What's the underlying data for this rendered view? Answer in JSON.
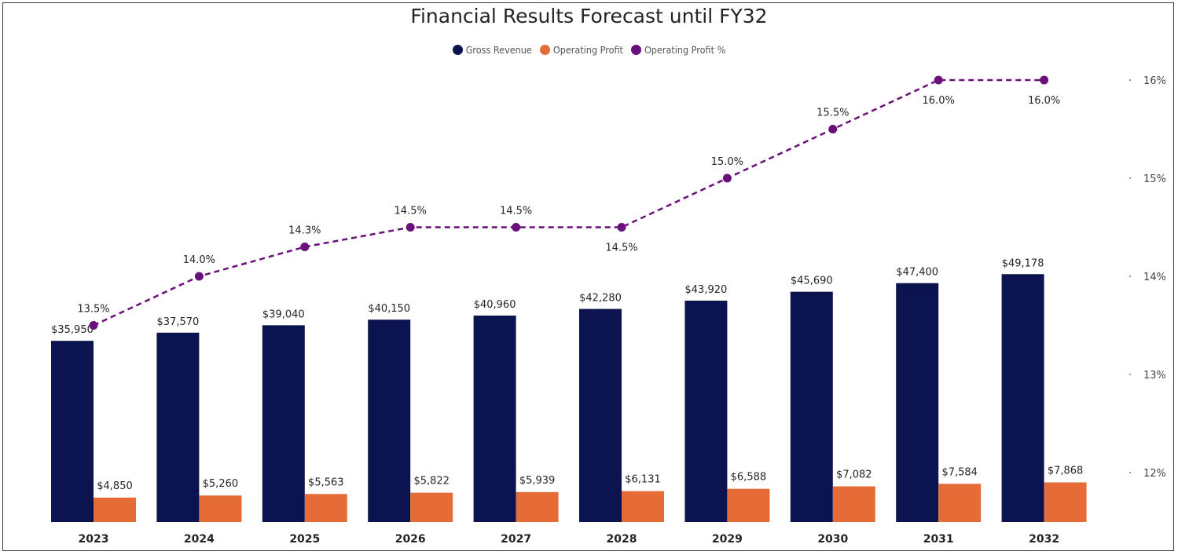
{
  "chart_data": {
    "type": "bar",
    "title": "Financial Results Forecast until FY32",
    "categories": [
      "2023",
      "2024",
      "2025",
      "2026",
      "2027",
      "2028",
      "2029",
      "2030",
      "2031",
      "2032"
    ],
    "series": [
      {
        "name": "Gross Revenue",
        "type": "bar",
        "color": "#0c1450",
        "values": [
          35950,
          37570,
          39040,
          40150,
          40960,
          42280,
          43920,
          45690,
          47400,
          49178
        ],
        "labels": [
          "$35,950",
          "$37,570",
          "$39,040",
          "$40,150",
          "$40,960",
          "$42,280",
          "$43,920",
          "$45,690",
          "$47,400",
          "$49,178"
        ]
      },
      {
        "name": "Operating Profit",
        "type": "bar",
        "color": "#e66c37",
        "values": [
          4850,
          5260,
          5563,
          5822,
          5939,
          6131,
          6588,
          7082,
          7584,
          7868
        ],
        "labels": [
          "$4,850",
          "$5,260",
          "$5,563",
          "$5,822",
          "$5,939",
          "$6,131",
          "$6,588",
          "$7,082",
          "$7,584",
          "$7,868"
        ]
      },
      {
        "name": "Operating Profit %",
        "type": "line",
        "style": "dashed",
        "axis": "right",
        "color": "#6b0f7b",
        "values": [
          13.5,
          14.0,
          14.3,
          14.5,
          14.5,
          14.5,
          15.0,
          15.5,
          16.0,
          16.0
        ],
        "labels": [
          "13.5%",
          "14.0%",
          "14.3%",
          "14.5%",
          "14.5%",
          "14.5%",
          "15.0%",
          "15.5%",
          "16.0%",
          "16.0%"
        ]
      }
    ],
    "y_left": {
      "range": [
        0,
        88000
      ],
      "ticks_visible": false
    },
    "y_right": {
      "range": [
        11.5,
        16.5
      ],
      "ticks": [
        "12%",
        "13%",
        "14%",
        "15%",
        "16%"
      ],
      "tick_values": [
        12,
        13,
        14,
        15,
        16
      ]
    },
    "legend_position": "top-center",
    "grid": false
  }
}
